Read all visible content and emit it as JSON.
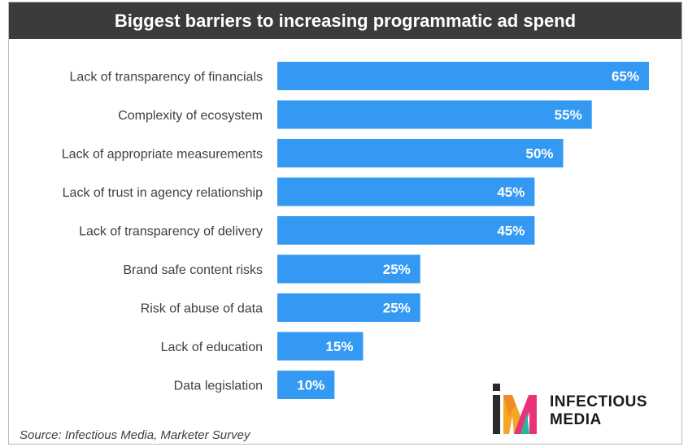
{
  "title": "Biggest barriers to increasing programmatic ad spend",
  "source": "Source: Infectious Media, Marketer Survey",
  "logo": {
    "line1": "INFECTIOUS",
    "line2": "MEDIA"
  },
  "colors": {
    "bar": "#3399f3",
    "title_bg": "#3b3b3b"
  },
  "chart_data": {
    "type": "bar",
    "orientation": "horizontal",
    "title": "Biggest barriers to increasing programmatic ad spend",
    "categories": [
      "Lack of transparency of financials",
      "Complexity of ecosystem",
      "Lack of appropriate measurements",
      "Lack of trust in agency relationship",
      "Lack of transparency of delivery",
      "Brand safe content risks",
      "Risk of abuse of data",
      "Lack of education",
      "Data legislation"
    ],
    "values": [
      65,
      55,
      50,
      45,
      45,
      25,
      25,
      15,
      10
    ],
    "value_labels": [
      "65%",
      "55%",
      "50%",
      "45%",
      "45%",
      "25%",
      "25%",
      "15%",
      "10%"
    ],
    "xlim": [
      0,
      65
    ],
    "grid": false,
    "legend": false
  }
}
